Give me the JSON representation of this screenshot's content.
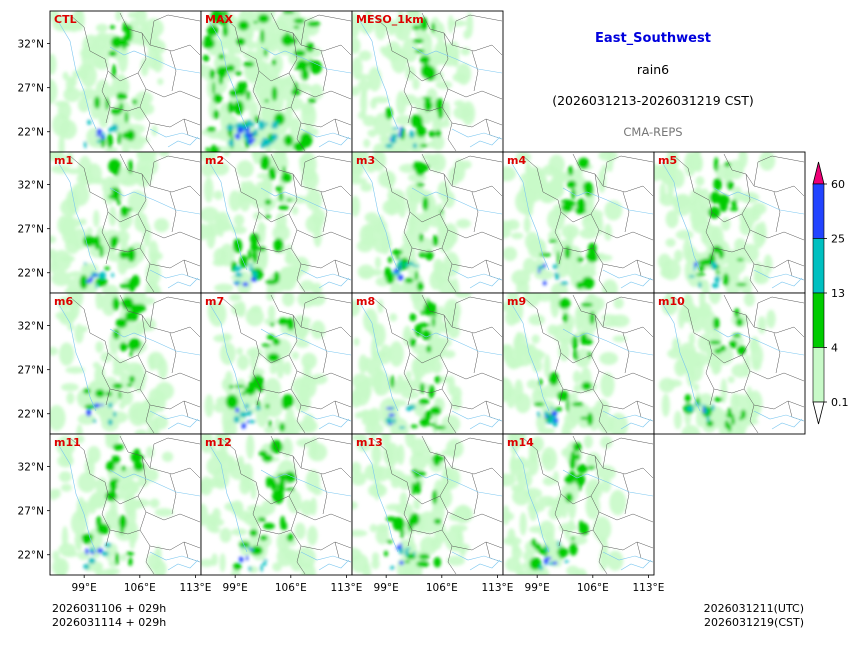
{
  "chart_data": {
    "type": "heatmap",
    "title": "East_Southwest",
    "variable": "rain6",
    "period": "(2026031213-2026031219 CST)",
    "source": "CMA-REPS",
    "panels": [
      "CTL",
      "MAX",
      "MESO_1km",
      "m1",
      "m2",
      "m3",
      "m4",
      "m5",
      "m6",
      "m7",
      "m8",
      "m9",
      "m10",
      "m11",
      "m12",
      "m13",
      "m14"
    ],
    "lat_ticks": [
      "32°N",
      "27°N",
      "22°N"
    ],
    "lon_ticks": [
      "99°E",
      "106°E",
      "113°E"
    ],
    "lat_values": [
      32,
      27,
      22
    ],
    "lon_values": [
      99,
      106,
      113
    ],
    "lat_range": [
      19.7,
      35.7
    ],
    "lon_range": [
      94.7,
      113.7
    ],
    "colorbar": {
      "levels": [
        "0.1",
        "4",
        "13",
        "25",
        "60"
      ],
      "colors": [
        "#ffffff",
        "#c8fac8",
        "#00cc00",
        "#00c0c0",
        "#2244ff",
        "#ee0077"
      ],
      "extend": "both"
    },
    "footer": {
      "init_line1": "2026031106  +  029h",
      "init_line2": "2026031114  +  029h",
      "valid_utc": "2026031211(UTC)",
      "valid_cst": "2026031219(CST)"
    }
  }
}
